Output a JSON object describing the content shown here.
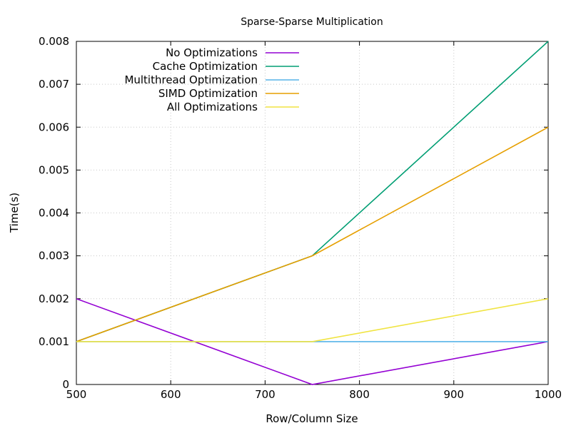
{
  "chart_data": {
    "type": "line",
    "title": "Sparse-Sparse Multiplication",
    "xlabel": "Row/Column Size",
    "ylabel": "Time(s)",
    "xlim": [
      500,
      1000
    ],
    "ylim": [
      0,
      0.008
    ],
    "xticks": [
      "500",
      "600",
      "700",
      "800",
      "900",
      "1000"
    ],
    "yticks": [
      "0",
      "0.001",
      "0.002",
      "0.003",
      "0.004",
      "0.005",
      "0.006",
      "0.007",
      "0.008"
    ],
    "grid": true,
    "legend_position": "top-left",
    "x": [
      500,
      750,
      1000
    ],
    "series": [
      {
        "name": "No Optimizations",
        "color": "#9400d3",
        "values": [
          0.002,
          0.0,
          0.001
        ]
      },
      {
        "name": "Cache Optimization",
        "color": "#009e73",
        "values": [
          0.001,
          0.003,
          0.008
        ]
      },
      {
        "name": "Multithread Optimization",
        "color": "#56b4e9",
        "values": [
          0.001,
          0.001,
          0.001
        ]
      },
      {
        "name": "SIMD Optimization",
        "color": "#e69f00",
        "values": [
          0.001,
          0.003,
          0.006
        ]
      },
      {
        "name": "All Optimizations",
        "color": "#f0e442",
        "values": [
          0.001,
          0.001,
          0.002
        ]
      }
    ]
  }
}
